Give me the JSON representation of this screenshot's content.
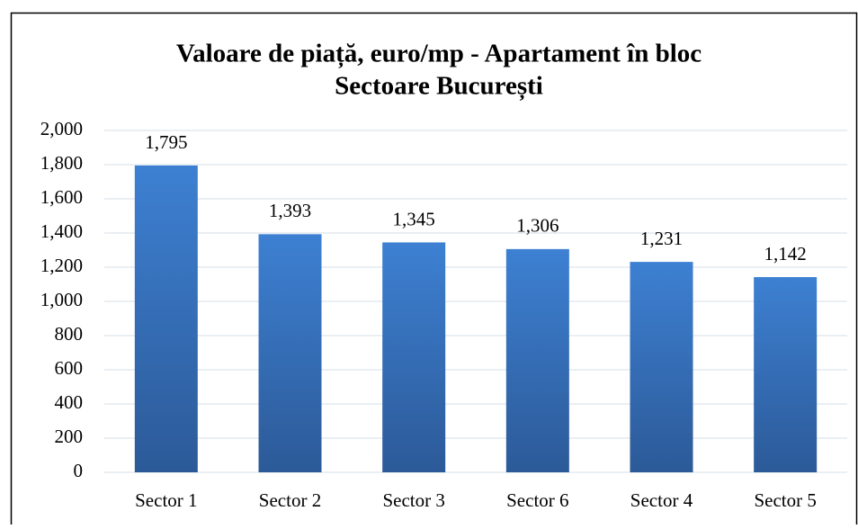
{
  "chart_data": {
    "type": "bar",
    "title": [
      "Valoare de piață, euro/mp - Apartament în bloc",
      "Sectoare București"
    ],
    "categories": [
      "Sector 1",
      "Sector 2",
      "Sector 3",
      "Sector 6",
      "Sector 4",
      "Sector 5"
    ],
    "values": [
      1795,
      1393,
      1345,
      1306,
      1231,
      1142
    ],
    "value_labels": [
      "1,795",
      "1,393",
      "1,345",
      "1,306",
      "1,231",
      "1,142"
    ],
    "color": "#3a78c8",
    "ylim": [
      0,
      2000
    ],
    "yticks": [
      0,
      200,
      400,
      600,
      800,
      {
        "value": 1000,
        "label": "1,000"
      },
      {
        "value": 1200,
        "label": "1,200"
      },
      {
        "value": 1400,
        "label": "1,400"
      },
      {
        "value": 1600,
        "label": "1,600"
      },
      {
        "value": 1800,
        "label": "1,800"
      },
      {
        "value": 2000,
        "label": "2,000"
      }
    ],
    "grid": true
  }
}
